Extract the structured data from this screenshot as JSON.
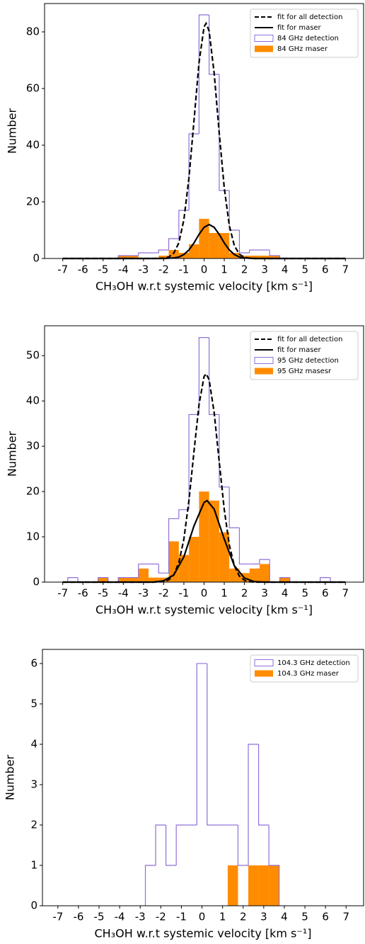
{
  "chart_data": [
    {
      "type": "histogram",
      "xlabel": "CH₃OH w.r.t systemic velocity [km s⁻¹]",
      "ylabel": "Number",
      "xlim": [
        -7.9,
        7.9
      ],
      "ylim": [
        0,
        90
      ],
      "xticks": [
        -7,
        -6,
        -5,
        -4,
        -3,
        -2,
        -1,
        0,
        1,
        2,
        3,
        4,
        5,
        6,
        7
      ],
      "yticks": [
        0,
        20,
        40,
        60,
        80
      ],
      "legend": "upper right",
      "bins": [
        -4.25,
        -3.75,
        -3.25,
        -2.75,
        -2.25,
        -1.75,
        -1.25,
        -0.75,
        -0.25,
        0.25,
        0.75,
        1.25,
        1.75,
        2.25,
        2.75,
        3.25,
        3.75
      ],
      "lines": [
        {
          "name": "fit for all detection",
          "color": "#000000",
          "dashed": true,
          "x": [
            -7,
            -2.5,
            -2,
            -1.75,
            -1.5,
            -1.25,
            -1,
            -0.75,
            -0.5,
            -0.25,
            0,
            0.1,
            0.25,
            0.5,
            0.75,
            1,
            1.25,
            1.5,
            1.75,
            2,
            2.25,
            2.5,
            7
          ],
          "values": [
            0,
            0,
            0.1,
            0.5,
            1.9,
            5.5,
            13.7,
            28.4,
            48.6,
            69.2,
            81.8,
            83,
            80.3,
            65.4,
            44.3,
            24.9,
            11.6,
            4.5,
            1.5,
            0.4,
            0.1,
            0,
            0
          ]
        },
        {
          "name": "fit for maser",
          "color": "#000000",
          "dashed": false,
          "x": [
            -7,
            -2,
            -1.5,
            -1.25,
            -1,
            -0.75,
            -0.5,
            -0.25,
            0,
            0.25,
            0.5,
            0.75,
            1,
            1.25,
            1.5,
            1.75,
            2,
            2.5,
            7
          ],
          "values": [
            0,
            0,
            0.2,
            0.5,
            1.4,
            3.0,
            5.5,
            8.5,
            11.0,
            12,
            11.0,
            8.5,
            5.5,
            3.0,
            1.4,
            0.5,
            0.2,
            0,
            0
          ]
        }
      ],
      "series": [
        {
          "name": "84 GHz detection",
          "color": "#8f6fd8",
          "style": "step",
          "values": [
            1,
            1,
            2,
            2,
            3,
            7,
            17,
            44,
            86,
            65,
            24,
            10,
            2,
            3,
            3,
            1
          ]
        },
        {
          "name": "84 GHz maser",
          "color": "#ff8c00",
          "style": "filled",
          "values": [
            1,
            1,
            0,
            0,
            1,
            3,
            2,
            5,
            14,
            9,
            9,
            2,
            1,
            1,
            1,
            1
          ]
        }
      ]
    },
    {
      "type": "histogram",
      "xlabel": "CH₃OH w.r.t systemic velocity [km s⁻¹]",
      "ylabel": "Number",
      "xlim": [
        -7.9,
        7.9
      ],
      "ylim": [
        0,
        56.6
      ],
      "xticks": [
        -7,
        -6,
        -5,
        -4,
        -3,
        -2,
        -1,
        0,
        1,
        2,
        3,
        4,
        5,
        6,
        7
      ],
      "yticks": [
        0,
        10,
        20,
        30,
        40,
        50
      ],
      "legend": "upper right",
      "bins": [
        -6.75,
        -6.25,
        -5.75,
        -5.25,
        -4.75,
        -4.25,
        -3.75,
        -3.25,
        -2.75,
        -2.25,
        -1.75,
        -1.25,
        -0.75,
        -0.25,
        0.25,
        0.75,
        1.25,
        1.75,
        2.25,
        2.75,
        3.25,
        3.75,
        4.25,
        4.75,
        5.25,
        5.75,
        6.25
      ],
      "lines": [
        {
          "name": "fit for all detection",
          "color": "#000000",
          "dashed": true,
          "x": [
            -7,
            -2.5,
            -2,
            -1.75,
            -1.5,
            -1.25,
            -1,
            -0.75,
            -0.5,
            -0.25,
            0,
            0.1,
            0.25,
            0.5,
            0.75,
            1,
            1.25,
            1.5,
            1.75,
            2,
            2.25,
            2.5,
            7
          ],
          "values": [
            0,
            0,
            0.1,
            0.5,
            1.6,
            4.3,
            9.5,
            18.0,
            28.8,
            39.2,
            45.4,
            46,
            44.7,
            37.4,
            26.6,
            16.0,
            8.2,
            3.6,
            1.3,
            0.4,
            0.1,
            0,
            0
          ]
        },
        {
          "name": "fit for maser",
          "color": "#000000",
          "dashed": false,
          "x": [
            -7,
            -2.5,
            -2,
            -1.5,
            -1,
            -0.5,
            0,
            0.15,
            0.5,
            1,
            1.5,
            2,
            2.5,
            3,
            7
          ],
          "values": [
            0,
            0,
            0.3,
            1.6,
            5.6,
            12.4,
            17.6,
            18,
            16.1,
            9.5,
            3.6,
            0.9,
            0.1,
            0,
            0
          ]
        }
      ],
      "series": [
        {
          "name": "95 GHz detection",
          "color": "#8f6fd8",
          "style": "step",
          "values": [
            1,
            0,
            0,
            1,
            0,
            1,
            1,
            4,
            4,
            2,
            14,
            16,
            37,
            54,
            37,
            21,
            12,
            4,
            4,
            5,
            0,
            1,
            0,
            0,
            0,
            1
          ]
        },
        {
          "name": "95 GHz masesr",
          "color": "#ff8c00",
          "style": "filled",
          "values": [
            0,
            0,
            0,
            1,
            0,
            1,
            1,
            3,
            1,
            1,
            9,
            6,
            10,
            20,
            18,
            11,
            3,
            2,
            3,
            4,
            0,
            1,
            0,
            0,
            0,
            0
          ]
        }
      ]
    },
    {
      "type": "histogram",
      "xlabel": "CH₃OH w.r.t systemic velocity [km s⁻¹]",
      "ylabel": "Number",
      "xlim": [
        -7.75,
        7.85
      ],
      "ylim": [
        0,
        6.35
      ],
      "xticks": [
        -7,
        -6,
        -5,
        -4,
        -3,
        -2,
        -1,
        0,
        1,
        2,
        3,
        4,
        5,
        6,
        7
      ],
      "yticks": [
        0,
        1,
        2,
        3,
        4,
        5,
        6
      ],
      "legend": "upper right",
      "bins": [
        -2.75,
        -2.25,
        -1.75,
        -1.25,
        -0.75,
        -0.25,
        0.25,
        0.75,
        1.25,
        1.75,
        2.25,
        2.75,
        3.25,
        3.75
      ],
      "lines": [],
      "series": [
        {
          "name": "104.3 GHz detection",
          "color": "#8f6fd8",
          "style": "step",
          "values": [
            1,
            2,
            1,
            2,
            2,
            6,
            2,
            2,
            2,
            1,
            4,
            2,
            1
          ]
        },
        {
          "name": "104.3 GHz maser",
          "color": "#ff8c00",
          "style": "filled",
          "values": [
            0,
            0,
            0,
            0,
            0,
            0,
            0,
            0,
            1,
            0,
            1,
            1,
            1
          ]
        }
      ]
    }
  ]
}
